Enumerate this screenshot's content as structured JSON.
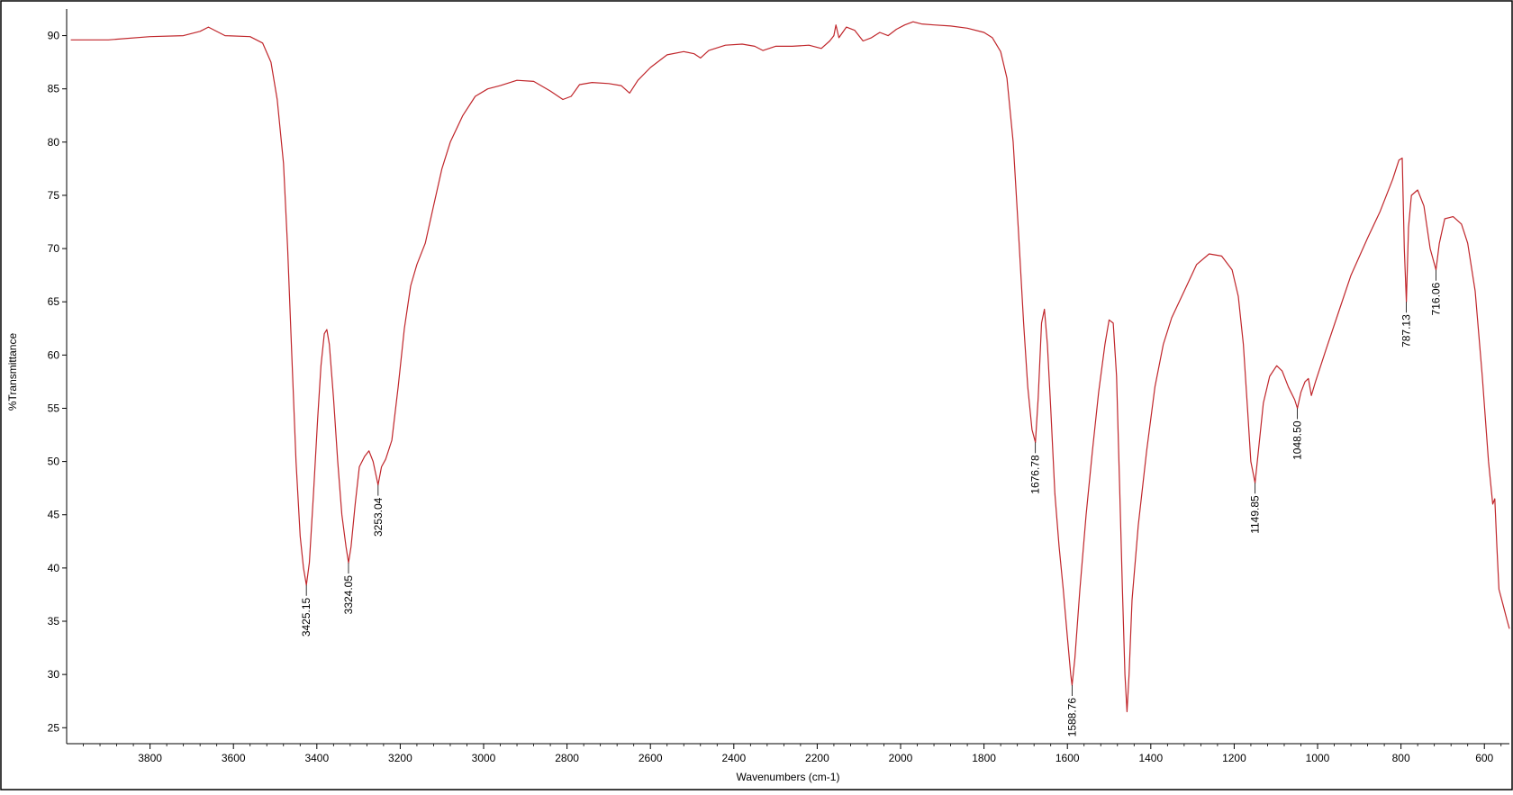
{
  "chart_data": {
    "type": "line",
    "title": "",
    "xlabel": "Wavenumbers (cm-1)",
    "ylabel": "%Transmittance",
    "xlim": [
      4000,
      540
    ],
    "ylim": [
      23.5,
      92.5
    ],
    "x_reversed": true,
    "x_ticks": [
      3800,
      3600,
      3400,
      3200,
      3000,
      2800,
      2600,
      2400,
      2200,
      2000,
      1800,
      1600,
      1400,
      1200,
      1000,
      800,
      600
    ],
    "y_ticks": [
      25,
      30,
      35,
      40,
      45,
      50,
      55,
      60,
      65,
      70,
      75,
      80,
      85,
      90
    ],
    "grid": false,
    "colors": {
      "spectrum": "#c0262b",
      "axis": "#000000",
      "frame": "#000000"
    },
    "series": [
      {
        "name": "",
        "points": [
          [
            3990,
            89.6
          ],
          [
            3900,
            89.6
          ],
          [
            3800,
            89.9
          ],
          [
            3720,
            90.0
          ],
          [
            3680,
            90.4
          ],
          [
            3660,
            90.8
          ],
          [
            3620,
            90.0
          ],
          [
            3560,
            89.9
          ],
          [
            3530,
            89.3
          ],
          [
            3510,
            87.5
          ],
          [
            3495,
            84.0
          ],
          [
            3480,
            78.0
          ],
          [
            3470,
            70.0
          ],
          [
            3460,
            60.0
          ],
          [
            3450,
            50.0
          ],
          [
            3440,
            43.0
          ],
          [
            3432,
            40.0
          ],
          [
            3425.15,
            38.4
          ],
          [
            3418,
            40.5
          ],
          [
            3408,
            47.0
          ],
          [
            3398,
            54.0
          ],
          [
            3390,
            59.0
          ],
          [
            3382,
            62.0
          ],
          [
            3376,
            62.4
          ],
          [
            3370,
            61.0
          ],
          [
            3360,
            56.0
          ],
          [
            3350,
            50.0
          ],
          [
            3340,
            45.0
          ],
          [
            3330,
            42.0
          ],
          [
            3324.05,
            40.5
          ],
          [
            3318,
            42.0
          ],
          [
            3308,
            46.0
          ],
          [
            3298,
            49.5
          ],
          [
            3285,
            50.5
          ],
          [
            3275,
            51.0
          ],
          [
            3265,
            50.0
          ],
          [
            3253.04,
            47.8
          ],
          [
            3245,
            49.5
          ],
          [
            3235,
            50.2
          ],
          [
            3220,
            52.0
          ],
          [
            3205,
            57.0
          ],
          [
            3190,
            62.5
          ],
          [
            3175,
            66.5
          ],
          [
            3160,
            68.5
          ],
          [
            3140,
            70.5
          ],
          [
            3120,
            74.0
          ],
          [
            3100,
            77.5
          ],
          [
            3080,
            80.0
          ],
          [
            3050,
            82.5
          ],
          [
            3020,
            84.3
          ],
          [
            2990,
            85.0
          ],
          [
            2960,
            85.3
          ],
          [
            2920,
            85.8
          ],
          [
            2880,
            85.7
          ],
          [
            2840,
            84.8
          ],
          [
            2810,
            84.0
          ],
          [
            2790,
            84.3
          ],
          [
            2770,
            85.4
          ],
          [
            2740,
            85.6
          ],
          [
            2700,
            85.5
          ],
          [
            2670,
            85.3
          ],
          [
            2650,
            84.6
          ],
          [
            2630,
            85.8
          ],
          [
            2600,
            87.0
          ],
          [
            2560,
            88.2
          ],
          [
            2520,
            88.5
          ],
          [
            2495,
            88.3
          ],
          [
            2480,
            87.9
          ],
          [
            2460,
            88.6
          ],
          [
            2420,
            89.1
          ],
          [
            2380,
            89.2
          ],
          [
            2350,
            89.0
          ],
          [
            2330,
            88.6
          ],
          [
            2300,
            89.0
          ],
          [
            2260,
            89.0
          ],
          [
            2220,
            89.1
          ],
          [
            2190,
            88.8
          ],
          [
            2170,
            89.5
          ],
          [
            2160,
            90.0
          ],
          [
            2155,
            91.0
          ],
          [
            2148,
            89.8
          ],
          [
            2130,
            90.8
          ],
          [
            2110,
            90.5
          ],
          [
            2090,
            89.5
          ],
          [
            2070,
            89.8
          ],
          [
            2050,
            90.3
          ],
          [
            2030,
            90.0
          ],
          [
            2010,
            90.6
          ],
          [
            1990,
            91.0
          ],
          [
            1970,
            91.3
          ],
          [
            1950,
            91.1
          ],
          [
            1920,
            91.0
          ],
          [
            1880,
            90.9
          ],
          [
            1840,
            90.7
          ],
          [
            1800,
            90.3
          ],
          [
            1780,
            89.8
          ],
          [
            1760,
            88.5
          ],
          [
            1745,
            86.0
          ],
          [
            1730,
            80.0
          ],
          [
            1718,
            72.0
          ],
          [
            1705,
            63.0
          ],
          [
            1695,
            57.0
          ],
          [
            1685,
            53.0
          ],
          [
            1676.78,
            51.8
          ],
          [
            1670,
            56.0
          ],
          [
            1662,
            63.0
          ],
          [
            1655,
            64.3
          ],
          [
            1648,
            61.0
          ],
          [
            1640,
            55.0
          ],
          [
            1630,
            47.0
          ],
          [
            1620,
            42.0
          ],
          [
            1610,
            38.0
          ],
          [
            1600,
            33.5
          ],
          [
            1592,
            30.0
          ],
          [
            1588.76,
            29.0
          ],
          [
            1582,
            31.5
          ],
          [
            1570,
            38.0
          ],
          [
            1555,
            45.0
          ],
          [
            1540,
            51.0
          ],
          [
            1525,
            56.5
          ],
          [
            1510,
            61.0
          ],
          [
            1500,
            63.3
          ],
          [
            1490,
            63.0
          ],
          [
            1482,
            58.0
          ],
          [
            1475,
            48.0
          ],
          [
            1468,
            38.0
          ],
          [
            1462,
            30.0
          ],
          [
            1457,
            26.5
          ],
          [
            1452,
            30.0
          ],
          [
            1445,
            37.0
          ],
          [
            1430,
            44.0
          ],
          [
            1410,
            51.0
          ],
          [
            1390,
            57.0
          ],
          [
            1370,
            61.0
          ],
          [
            1350,
            63.5
          ],
          [
            1320,
            66.0
          ],
          [
            1290,
            68.5
          ],
          [
            1260,
            69.5
          ],
          [
            1230,
            69.3
          ],
          [
            1205,
            68.0
          ],
          [
            1190,
            65.5
          ],
          [
            1178,
            61.0
          ],
          [
            1168,
            55.0
          ],
          [
            1160,
            50.0
          ],
          [
            1149.85,
            48.0
          ],
          [
            1142,
            51.0
          ],
          [
            1130,
            55.5
          ],
          [
            1115,
            58.0
          ],
          [
            1098,
            59.0
          ],
          [
            1085,
            58.5
          ],
          [
            1070,
            57.0
          ],
          [
            1055,
            55.8
          ],
          [
            1048.5,
            55.0
          ],
          [
            1040,
            56.5
          ],
          [
            1030,
            57.5
          ],
          [
            1022,
            57.8
          ],
          [
            1015,
            56.2
          ],
          [
            1005,
            57.5
          ],
          [
            980,
            60.5
          ],
          [
            950,
            64.0
          ],
          [
            920,
            67.5
          ],
          [
            880,
            71.0
          ],
          [
            850,
            73.5
          ],
          [
            820,
            76.5
          ],
          [
            805,
            78.3
          ],
          [
            797,
            78.5
          ],
          [
            792,
            70.0
          ],
          [
            787.13,
            65.0
          ],
          [
            782,
            72.0
          ],
          [
            775,
            75.0
          ],
          [
            760,
            75.5
          ],
          [
            745,
            74.0
          ],
          [
            730,
            70.0
          ],
          [
            716.06,
            68.0
          ],
          [
            708,
            70.5
          ],
          [
            695,
            72.8
          ],
          [
            675,
            73.0
          ],
          [
            655,
            72.3
          ],
          [
            640,
            70.5
          ],
          [
            622,
            66.0
          ],
          [
            605,
            58.0
          ],
          [
            590,
            50.0
          ],
          [
            580,
            46.0
          ],
          [
            575,
            46.5
          ],
          [
            570,
            42.0
          ],
          [
            565,
            38.0
          ],
          [
            555,
            36.5
          ],
          [
            545,
            35.0
          ],
          [
            540,
            34.3
          ]
        ]
      }
    ],
    "peak_labels": [
      {
        "x": 3425.15,
        "y": 38.4,
        "label": "3425.15"
      },
      {
        "x": 3324.05,
        "y": 40.5,
        "label": "3324.05"
      },
      {
        "x": 3253.04,
        "y": 47.8,
        "label": "3253.04"
      },
      {
        "x": 1676.78,
        "y": 51.8,
        "label": "1676.78"
      },
      {
        "x": 1588.76,
        "y": 29.0,
        "label": "1588.76"
      },
      {
        "x": 1149.85,
        "y": 48.0,
        "label": "1149.85"
      },
      {
        "x": 1048.5,
        "y": 55.0,
        "label": "1048.50"
      },
      {
        "x": 787.13,
        "y": 65.0,
        "label": "787.13"
      },
      {
        "x": 716.06,
        "y": 68.0,
        "label": "716.06"
      }
    ]
  }
}
